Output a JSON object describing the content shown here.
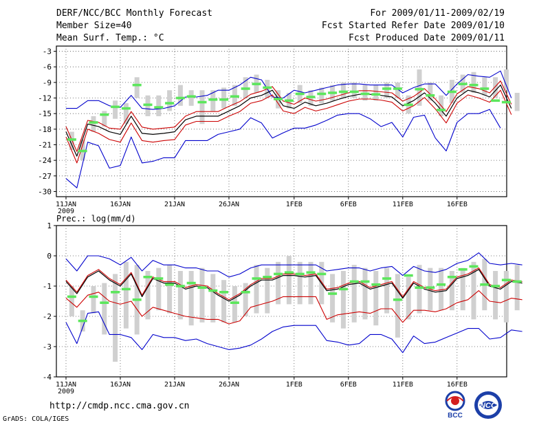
{
  "header": {
    "title": "DERF/NCC/BCC Monthly Forecast",
    "member_size": "Member Size=40",
    "variable": "Mean Surf. Temp.: °C",
    "forecast_period": "For 2009/01/11-2009/02/19",
    "started_refer": "Fcst Started Refer Date 2009/01/10",
    "produced": "Fcst Produced Date 2009/01/11"
  },
  "footer": {
    "url": "http://cmdp.ncc.cma.gov.cn",
    "grads": "GrADS: COLA/IGES",
    "logo_bcc": "BCC",
    "logo_ncc": "NCC"
  },
  "colors": {
    "ensemble_mean": "#000000",
    "spread_band": "#cc0000",
    "min_max": "#0000cc",
    "member_box": "#d0d0d0",
    "reference": "#5ce65c"
  },
  "chart_data": [
    {
      "type": "line",
      "id": "temperature",
      "label": "",
      "ylim": [
        -31,
        -2
      ],
      "yticks": [
        -3,
        -6,
        -9,
        -12,
        -15,
        -18,
        -21,
        -24,
        -27,
        -30
      ],
      "x_ticks": [
        {
          "day": 0,
          "label": "11JAN",
          "sub": "2009"
        },
        {
          "day": 5,
          "label": "16JAN"
        },
        {
          "day": 10,
          "label": "21JAN"
        },
        {
          "day": 15,
          "label": "26JAN"
        },
        {
          "day": 21,
          "label": "1FEB"
        },
        {
          "day": 26,
          "label": "6FEB"
        },
        {
          "day": 31,
          "label": "11FEB"
        },
        {
          "day": 36,
          "label": "16FEB"
        }
      ],
      "days": 40,
      "series": [
        {
          "name": "ensemble-mean",
          "values": [
            -18.5,
            -23.2,
            -17,
            -17.5,
            -18.5,
            -19,
            -15.5,
            -18.8,
            -19,
            -18.8,
            -18.5,
            -16.2,
            -15.5,
            -15.5,
            -15.5,
            -14.5,
            -13.5,
            -12,
            -11.5,
            -10.5,
            -13.5,
            -14,
            -12.8,
            -13.5,
            -13,
            -12.3,
            -11.7,
            -11.3,
            -11.3,
            -11.5,
            -11.8,
            -13.5,
            -12.5,
            -11,
            -13,
            -15.5,
            -12,
            -10.5,
            -11,
            -11.8,
            -9.5,
            -14
          ]
        },
        {
          "name": "upper-band",
          "values": [
            -17.5,
            -22.3,
            -16.3,
            -16.7,
            -17.8,
            -18,
            -14.6,
            -17.6,
            -18,
            -17.8,
            -17.6,
            -15.5,
            -14.6,
            -14.6,
            -14.6,
            -13.6,
            -12.7,
            -11.3,
            -10.7,
            -9.8,
            -12.6,
            -13.2,
            -12,
            -12.6,
            -12.2,
            -11.6,
            -11,
            -10.6,
            -10.6,
            -10.8,
            -11,
            -12.6,
            -11.7,
            -10.2,
            -12.2,
            -14.6,
            -11.2,
            -9.8,
            -10.2,
            -11,
            -8.7,
            -13.2
          ]
        },
        {
          "name": "lower-band",
          "values": [
            -19.5,
            -24.5,
            -18,
            -18.8,
            -20,
            -20.5,
            -16.8,
            -20.2,
            -20.5,
            -20.2,
            -20,
            -17.2,
            -16.5,
            -16.5,
            -16.5,
            -15.5,
            -14.6,
            -13,
            -12.5,
            -11.4,
            -14.5,
            -15,
            -13.8,
            -14.5,
            -14,
            -13.3,
            -12.6,
            -12.2,
            -12.2,
            -12.4,
            -12.8,
            -14.5,
            -13.5,
            -11.9,
            -14.1,
            -16.8,
            -13,
            -11.4,
            -12,
            -12.8,
            -10.5,
            -15.2
          ]
        },
        {
          "name": "maximum",
          "values": [
            -14,
            -14,
            -12.5,
            -12.5,
            -13.5,
            -13.8,
            -11.5,
            -14,
            -14.2,
            -14,
            -13.5,
            -11.8,
            -11.8,
            -11.5,
            -10.5,
            -10.5,
            -9.5,
            -8,
            -8.5,
            -11.8,
            -12,
            -10.5,
            -11,
            -10.5,
            -10,
            -9.5,
            -9.3,
            -9.3,
            -9.5,
            -9.5,
            -9.5,
            -11,
            -10,
            -9.3,
            -9.3,
            -11.5,
            -9.3,
            -7.5,
            -7.8,
            -8,
            -6.8,
            -12
          ]
        },
        {
          "name": "minimum",
          "values": [
            -27.5,
            -29.3,
            -20.5,
            -21.2,
            -25.5,
            -25,
            -19.5,
            -24.5,
            -24.2,
            -23.5,
            -23.5,
            -20.2,
            -20.2,
            -20.2,
            -19,
            -18.5,
            -18,
            -15.8,
            -16.8,
            -19.7,
            -18.7,
            -17.8,
            -17.8,
            -17.2,
            -16.3,
            -15.3,
            -15,
            -15,
            -16,
            -17.5,
            -16.7,
            -19.5,
            -15.7,
            -15.3,
            -19.7,
            -22.2,
            -16.7,
            -15,
            -15,
            -14.2,
            -17.8
          ]
        },
        {
          "name": "reference",
          "values": [
            -20,
            -22.2,
            -16.7,
            -15.2,
            -13.7,
            -14,
            -9.5,
            -13.3,
            -13.8,
            -13,
            -12,
            -11.7,
            -12.8,
            -12.3,
            -12.3,
            -11.7,
            -10.2,
            -9.3,
            -10,
            -12.2,
            -12.5,
            -11.2,
            -11.8,
            -11.2,
            -11,
            -10.8,
            -10.8,
            -11.2,
            -11.3,
            -10.2,
            -10.2,
            -13.3,
            -10.3,
            -11.5,
            -14.3,
            -10.8,
            -9.3,
            -9.5,
            -10.2,
            -12.5,
            -12.8
          ]
        },
        {
          "name": "member-box-top",
          "values": [
            -18.5,
            -20,
            -15.5,
            -14.5,
            -12.5,
            -13,
            -8,
            -11.5,
            -11.5,
            -10.5,
            -9.5,
            -10.5,
            -10.5,
            -10.5,
            -10,
            -9.5,
            -8,
            -7.5,
            -8.5,
            -10.5,
            -11,
            -9.5,
            -10.5,
            -10,
            -9.5,
            -9,
            -9,
            -9.5,
            -9.5,
            -9,
            -9,
            -11.5,
            -6.5,
            -9,
            -11.5,
            -8.5,
            -7.5,
            -7,
            -8,
            -8,
            -6.5,
            -11
          ]
        },
        {
          "name": "member-box-bottom",
          "values": [
            -22,
            -24,
            -18.5,
            -17.5,
            -16,
            -17,
            -12,
            -15.5,
            -15.5,
            -14.5,
            -13.5,
            -13.5,
            -17,
            -14.5,
            -14,
            -13.5,
            -12,
            -11,
            -12,
            -14,
            -14,
            -13,
            -13.5,
            -13,
            -12.5,
            -12,
            -12,
            -12.5,
            -12.5,
            -12,
            -12,
            -15,
            -13.5,
            -12.5,
            -15.5,
            -13,
            -11,
            -11,
            -11.5,
            -12,
            -10.5,
            -14.5
          ]
        }
      ]
    },
    {
      "type": "line",
      "id": "precipitation",
      "label": "Prec.: log(mm/d)",
      "ylim": [
        -4,
        1
      ],
      "yticks": [
        1,
        0,
        -1,
        -2,
        -3,
        -4
      ],
      "x_ticks": [
        {
          "day": 0,
          "label": "11JAN",
          "sub": "2009"
        },
        {
          "day": 5,
          "label": "16JAN"
        },
        {
          "day": 10,
          "label": "21JAN"
        },
        {
          "day": 15,
          "label": "26JAN"
        },
        {
          "day": 21,
          "label": "1FEB"
        },
        {
          "day": 26,
          "label": "6FEB"
        },
        {
          "day": 31,
          "label": "11FEB"
        },
        {
          "day": 36,
          "label": "16FEB"
        }
      ],
      "days": 40,
      "series": [
        {
          "name": "ensemble-mean",
          "values": [
            -0.85,
            -1.25,
            -0.7,
            -0.5,
            -0.8,
            -1,
            -0.6,
            -1.35,
            -0.75,
            -0.9,
            -0.9,
            -1.1,
            -1,
            -1.05,
            -1.3,
            -1.5,
            -1.3,
            -1,
            -0.8,
            -0.8,
            -0.65,
            -0.65,
            -0.7,
            -0.65,
            -1.15,
            -1.1,
            -0.95,
            -0.9,
            -1.1,
            -1,
            -0.9,
            -1.4,
            -0.9,
            -1.1,
            -1.2,
            -1.15,
            -0.75,
            -0.65,
            -0.45,
            -1,
            -1.1,
            -0.85,
            -0.9
          ]
        },
        {
          "name": "upper-band",
          "values": [
            -0.8,
            -1.2,
            -0.65,
            -0.45,
            -0.75,
            -0.95,
            -0.55,
            -1.3,
            -0.7,
            -0.85,
            -0.85,
            -1.05,
            -0.95,
            -1,
            -1.25,
            -1.45,
            -1.25,
            -0.95,
            -0.75,
            -0.75,
            -0.6,
            -0.6,
            -0.65,
            -0.6,
            -1.1,
            -1.05,
            -0.9,
            -0.85,
            -1.05,
            -0.95,
            -0.85,
            -1.35,
            -0.85,
            -1.05,
            -1.15,
            -1.1,
            -0.7,
            -0.6,
            -0.4,
            -0.95,
            -1.05,
            -0.8,
            -0.85
          ]
        },
        {
          "name": "lower-band",
          "values": [
            -1.4,
            -1.7,
            -1.3,
            -1.2,
            -1.5,
            -1.6,
            -1.5,
            -2.0,
            -1.7,
            -1.8,
            -1.9,
            -2.0,
            -2.05,
            -2.1,
            -2.1,
            -2.25,
            -2.15,
            -1.7,
            -1.6,
            -1.5,
            -1.35,
            -1.35,
            -1.35,
            -1.35,
            -2.1,
            -1.95,
            -1.9,
            -1.85,
            -1.9,
            -1.75,
            -1.75,
            -2.2,
            -1.8,
            -1.8,
            -1.85,
            -1.75,
            -1.55,
            -1.45,
            -1.15,
            -1.5,
            -1.55,
            -1.4,
            -1.45
          ]
        },
        {
          "name": "maximum",
          "values": [
            -0.1,
            -0.5,
            0,
            0,
            -0.1,
            -0.3,
            -0.05,
            -0.5,
            -0.15,
            -0.3,
            -0.3,
            -0.4,
            -0.4,
            -0.5,
            -0.5,
            -0.7,
            -0.6,
            -0.4,
            -0.3,
            -0.3,
            -0.3,
            -0.3,
            -0.3,
            -0.3,
            -0.5,
            -0.45,
            -0.4,
            -0.4,
            -0.5,
            -0.4,
            -0.35,
            -0.65,
            -0.35,
            -0.5,
            -0.55,
            -0.45,
            -0.25,
            -0.15,
            0.1,
            -0.25,
            -0.3,
            -0.25,
            -0.3
          ]
        },
        {
          "name": "minimum",
          "values": [
            -2.2,
            -2.9,
            -1.9,
            -1.85,
            -2.6,
            -2.6,
            -2.7,
            -3.1,
            -2.6,
            -2.7,
            -2.7,
            -2.8,
            -2.75,
            -2.9,
            -3,
            -3.1,
            -3.05,
            -2.95,
            -2.75,
            -2.5,
            -2.35,
            -2.3,
            -2.3,
            -2.3,
            -2.8,
            -2.85,
            -2.95,
            -2.9,
            -2.6,
            -2.6,
            -2.75,
            -3.2,
            -2.65,
            -2.9,
            -2.85,
            -2.7,
            -2.55,
            -2.4,
            -2.4,
            -2.75,
            -2.7,
            -2.45,
            -2.5
          ]
        },
        {
          "name": "reference",
          "values": [
            -1.35,
            -2.15,
            -1.35,
            -1.55,
            -1.2,
            -1.1,
            -1.45,
            -0.7,
            -0.75,
            -0.95,
            -1,
            -0.9,
            -1.05,
            -1.15,
            -1.2,
            -1.55,
            -1.2,
            -0.75,
            -0.7,
            -0.6,
            -0.55,
            -0.6,
            -0.55,
            -0.6,
            -1.25,
            -1.1,
            -0.85,
            -0.85,
            -0.95,
            -0.75,
            -1.45,
            -0.65,
            -1.05,
            -1.05,
            -0.95,
            -0.7,
            -0.45,
            -0.35,
            -0.95,
            -1.0,
            -0.8,
            -0.85
          ]
        },
        {
          "name": "member-box-top",
          "values": [
            -1,
            -1.8,
            -1,
            -0.9,
            -0.6,
            -0.2,
            -0.3,
            -0.5,
            -0.4,
            -0.3,
            -0.5,
            -0.5,
            -0.4,
            -0.6,
            -0.8,
            -1,
            -0.9,
            -0.3,
            -0.4,
            -0.2,
            0,
            -0.2,
            -0.2,
            -0.2,
            -0.6,
            -0.5,
            -0.3,
            -0.4,
            -0.5,
            -0.4,
            -0.6,
            -0.7,
            -0.3,
            -0.4,
            -0.4,
            -0.5,
            -0.4,
            -0.2,
            -0.1,
            -0.5,
            -0.5,
            -0.3,
            -0.3
          ]
        },
        {
          "name": "member-box-bottom",
          "values": [
            -2,
            -2.5,
            -1.9,
            -2.6,
            -3.5,
            -2.4,
            -2.6,
            -2.1,
            -1.8,
            -1.9,
            -2.1,
            -2.3,
            -2.2,
            -2.2,
            -2.2,
            -2.2,
            -2,
            -1.9,
            -1.9,
            -1.6,
            -1.6,
            -1.6,
            -1.6,
            -1.6,
            -2.2,
            -2.4,
            -2.2,
            -2.1,
            -2.3,
            -1.9,
            -2.7,
            -2.1,
            -1.9,
            -1.8,
            -1.8,
            -1.8,
            -1.8,
            -2.1,
            -1.8,
            -2.1,
            -2.2,
            -1.8,
            -1.9
          ]
        }
      ]
    }
  ]
}
